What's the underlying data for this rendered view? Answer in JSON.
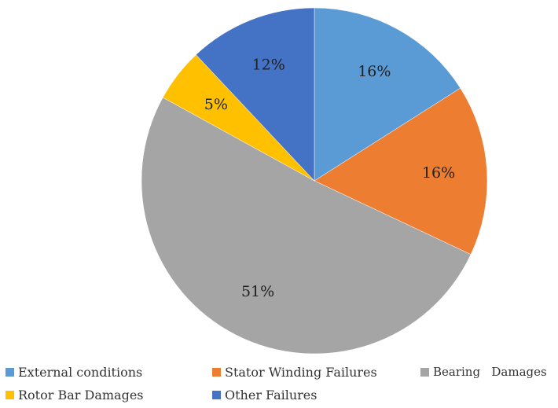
{
  "chart_data": {
    "type": "pie",
    "title": "",
    "slices": [
      {
        "label": "External conditions",
        "value": 16,
        "display": "16%",
        "color": "#5B9BD5"
      },
      {
        "label": "Stator Winding Failures",
        "value": 16,
        "display": "16%",
        "color": "#ED7D31"
      },
      {
        "label": "Bearing   Damages",
        "value": 51,
        "display": "51%",
        "color": "#A5A5A5"
      },
      {
        "label": "Rotor Bar Damages",
        "value": 5,
        "display": "5%",
        "color": "#FFC000"
      },
      {
        "label": "Other Failures",
        "value": 12,
        "display": "12%",
        "color": "#4472C4"
      }
    ],
    "start_angle_deg": 0,
    "direction": "clockwise",
    "legend_position": "bottom"
  }
}
